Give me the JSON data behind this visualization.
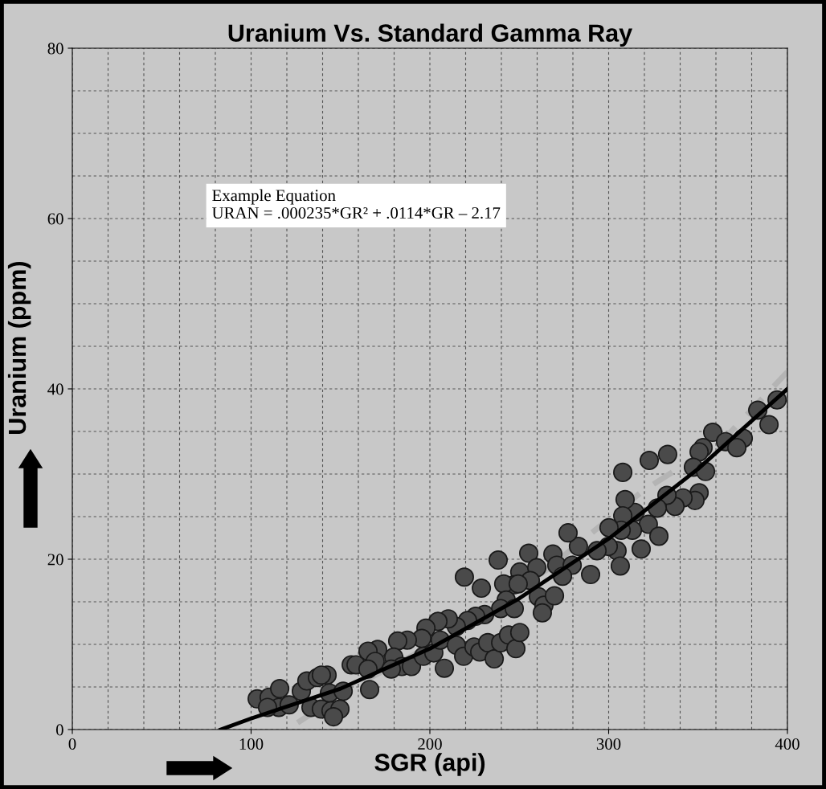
{
  "chart_data": {
    "type": "scatter",
    "title": "Uranium Vs. Standard Gamma Ray",
    "xlabel": "SGR (api)",
    "ylabel": "Uranium (ppm)",
    "annotations": [
      "Example Equation\nURAN = .000235*GR² + .0114*GR – 2.17"
    ],
    "xlim": [
      0,
      400
    ],
    "xticks": [
      0,
      100,
      200,
      300,
      400
    ],
    "ylim": [
      0,
      80
    ],
    "yticks": [
      0,
      20,
      40,
      60,
      80
    ],
    "grid": true,
    "marker": "circle",
    "series": [
      {
        "color": "#4a4a4a",
        "x": [
          103.4,
          110.1,
          116.0,
          128.1,
          131.2,
          137.1,
          142.5,
          143.8,
          151.5,
          156.0,
          115.5,
          121.3,
          133.5,
          139.3,
          144.7,
          149.7,
          109.2,
          146.1,
          219.3,
          228.8,
          238.2,
          255.3,
          250.3,
          247.2,
          241.3,
          259.8,
          256.2,
          268.8,
          271.0,
          242.7,
          239.6,
          247.2,
          260.7,
          263.8,
          269.7,
          262.9,
          230.6,
          225.6,
          221.1,
          214.8,
          210.3,
          204.5,
          197.8,
          195.5,
          187.4,
          182.0,
          179.8,
          184.3,
          189.7,
          196.4,
          202.2,
          205.8,
          208.1,
          214.8,
          218.9,
          224.7,
          227.9,
          232.4,
          236.0,
          239.6,
          244.0,
          248.1,
          250.3,
          170.8,
          165.4,
          169.4,
          158.7,
          165.4,
          178.4,
          139.3,
          166.3,
          307.9,
          322.7,
          333.0,
          358.2,
          352.8,
          350.6,
          365.4,
          375.3,
          371.7,
          383.4,
          389.7,
          394.2,
          347.4,
          354.2,
          350.6,
          348.3,
          341.6,
          337.1,
          332.6,
          327.2,
          322.2,
          328.1,
          318.2,
          313.3,
          314.6,
          309.2,
          307.9,
          307.0,
          304.7,
          306.5,
          300.2,
          299.8,
          293.5,
          289.9,
          283.1,
          277.3,
          279.6,
          274.2,
          249.4
        ],
        "values": [
          3.6,
          3.8,
          4.8,
          4.5,
          5.7,
          6.1,
          6.4,
          4.3,
          4.5,
          7.6,
          2.6,
          2.9,
          2.6,
          2.4,
          2.2,
          2.4,
          2.6,
          1.5,
          17.9,
          16.6,
          19.9,
          20.7,
          18.5,
          17.0,
          17.1,
          19.0,
          17.5,
          20.6,
          19.3,
          15.2,
          14.2,
          14.2,
          15.6,
          14.6,
          15.7,
          13.7,
          13.5,
          13.3,
          12.8,
          12.1,
          13.0,
          12.7,
          11.9,
          10.7,
          10.5,
          10.4,
          8.5,
          7.4,
          7.4,
          8.6,
          9.0,
          10.5,
          7.2,
          9.9,
          8.6,
          9.7,
          9.1,
          10.2,
          8.3,
          10.2,
          11.1,
          9.5,
          11.4,
          9.4,
          9.2,
          8.0,
          7.6,
          7.1,
          7.1,
          6.4,
          4.7,
          30.2,
          31.6,
          32.3,
          34.9,
          33.1,
          32.6,
          33.8,
          34.2,
          33.1,
          37.5,
          35.8,
          38.7,
          30.8,
          30.3,
          27.8,
          26.9,
          27.2,
          26.2,
          27.5,
          26.0,
          24.1,
          22.7,
          21.2,
          23.4,
          25.5,
          27.0,
          25.1,
          23.4,
          21.0,
          19.2,
          23.7,
          21.5,
          21.0,
          18.2,
          21.5,
          23.1,
          19.3,
          18.0,
          17.1
        ]
      },
      {
        "type": "line",
        "color": "#b4b4b4",
        "line_style": "dashed",
        "marker": "none",
        "x": [
          126,
          157,
          211,
          265,
          319,
          364,
          400
        ],
        "values": [
          0.8,
          5,
          11,
          18.7,
          28,
          34,
          42
        ]
      },
      {
        "type": "line",
        "color": "#000000",
        "line_style": "solid",
        "marker": "none",
        "x": [
          83,
          100,
          150,
          200,
          250,
          300,
          350,
          400
        ],
        "values": [
          0,
          1.3,
          4.8,
          9.5,
          15.4,
          22.4,
          30.6,
          40
        ]
      }
    ]
  }
}
